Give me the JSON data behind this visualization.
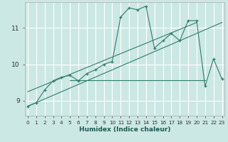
{
  "xlabel": "Humidex (Indice chaleur)",
  "bg_color": "#cce8e4",
  "grid_color": "#ffffff",
  "line_color": "#2e7d6e",
  "x_ticks": [
    0,
    1,
    2,
    3,
    4,
    5,
    6,
    7,
    8,
    9,
    10,
    11,
    12,
    13,
    14,
    15,
    16,
    17,
    18,
    19,
    20,
    21,
    22,
    23
  ],
  "y_ticks": [
    9,
    10,
    11
  ],
  "ylim": [
    8.6,
    11.7
  ],
  "xlim": [
    -0.3,
    23.3
  ],
  "series_main": {
    "x": [
      0,
      1,
      2,
      3,
      4,
      5,
      6,
      7,
      8,
      9,
      10,
      11,
      12,
      13,
      14,
      15,
      16,
      17,
      18,
      19,
      20,
      21,
      22,
      23
    ],
    "y": [
      8.85,
      8.95,
      9.3,
      9.55,
      9.65,
      9.7,
      9.55,
      9.75,
      9.85,
      10.0,
      10.08,
      11.3,
      11.55,
      11.5,
      11.6,
      10.45,
      10.65,
      10.85,
      10.65,
      11.2,
      11.2,
      9.4,
      10.15,
      9.6
    ]
  },
  "line_diag1": {
    "x": [
      0,
      23
    ],
    "y": [
      8.85,
      11.15
    ]
  },
  "line_diag2": {
    "x": [
      0,
      20
    ],
    "y": [
      9.25,
      11.15
    ]
  },
  "line_flat": {
    "x": [
      5,
      21
    ],
    "y": [
      9.57,
      9.57
    ]
  },
  "figsize": [
    3.2,
    2.0
  ],
  "dpi": 100
}
